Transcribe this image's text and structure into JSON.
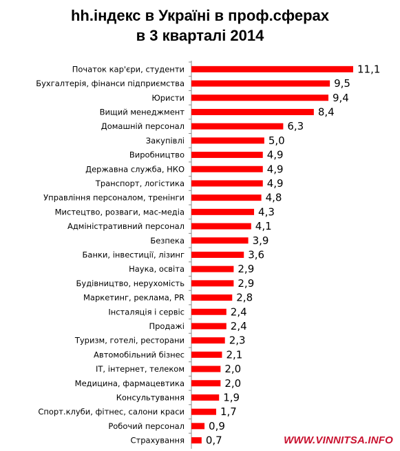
{
  "watermark": "WWW.VINNITSA.INFO",
  "chart_data": {
    "type": "bar",
    "orientation": "horizontal",
    "title_lines": [
      "hh.індекс в Україні в проф.сферах",
      "в 3 кварталі 2014"
    ],
    "categories": [
      "Початок кар'єри, студенти",
      "Бухгалтерія, фінанси підприємства",
      "Юристи",
      "Вищий менеджмент",
      "Домашній персонал",
      "Закупівлі",
      "Виробництво",
      "Державна служба, НКО",
      "Транспорт, логістика",
      "Управління персоналом, тренінги",
      "Мистецтво, розваги, мас-медіа",
      "Адміністративний персонал",
      "Безпека",
      "Банки, інвестиції, лізинг",
      "Наука, освіта",
      "Будівництво, нерухомість",
      "Маркетинг, реклама, PR",
      "Інсталяція і сервіс",
      "Продажі",
      "Туризм, готелі, ресторани",
      "Автомобільний бізнес",
      "IT, інтернет, телеком",
      "Медицина, фармацевтика",
      "Консультування",
      "Спорт.клуби, фітнес, салони краси",
      "Робочий персонал",
      "Страхування"
    ],
    "values": [
      11.1,
      9.5,
      9.4,
      8.4,
      6.3,
      5.0,
      4.9,
      4.9,
      4.9,
      4.8,
      4.3,
      4.1,
      3.9,
      3.6,
      2.9,
      2.9,
      2.8,
      2.4,
      2.4,
      2.3,
      2.1,
      2.0,
      2.0,
      1.9,
      1.7,
      0.9,
      0.7
    ],
    "value_labels": [
      "11,1",
      "9,5",
      "9,4",
      "8,4",
      "6,3",
      "5,0",
      "4,9",
      "4,9",
      "4,9",
      "4,8",
      "4,3",
      "4,1",
      "3,9",
      "3,6",
      "2,9",
      "2,9",
      "2,8",
      "2,4",
      "2,4",
      "2,3",
      "2,1",
      "2,0",
      "2,0",
      "1,9",
      "1,7",
      "0,9",
      "0,7"
    ],
    "bar_color": "#ff0000",
    "axis_color": "#888888",
    "xlim": [
      0,
      11.1
    ],
    "grid": false,
    "legend": "none"
  }
}
